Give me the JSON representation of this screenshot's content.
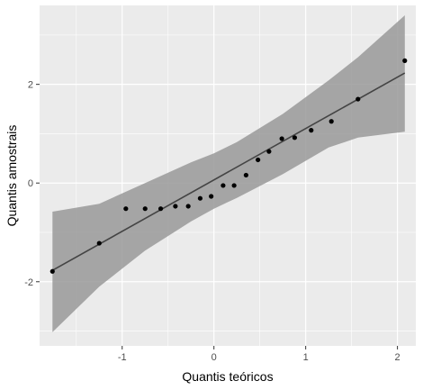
{
  "chart_data": {
    "type": "scatter",
    "xlabel": "Quantis teóricos",
    "ylabel": "Quantis amostrais",
    "xlim": [
      -1.9,
      2.2
    ],
    "ylim": [
      -3.3,
      3.6
    ],
    "x_ticks": [
      -1,
      0,
      1,
      2
    ],
    "y_ticks": [
      -2,
      0,
      2
    ],
    "x_tick_labels": [
      "-1",
      "0",
      "1",
      "2"
    ],
    "y_tick_labels": [
      "-2",
      "0",
      "2"
    ],
    "grid": true,
    "points": [
      {
        "x": -1.76,
        "y": -1.79
      },
      {
        "x": -1.25,
        "y": -1.22
      },
      {
        "x": -0.96,
        "y": -0.52
      },
      {
        "x": -0.75,
        "y": -0.52
      },
      {
        "x": -0.58,
        "y": -0.52
      },
      {
        "x": -0.42,
        "y": -0.47
      },
      {
        "x": -0.28,
        "y": -0.47
      },
      {
        "x": -0.15,
        "y": -0.31
      },
      {
        "x": -0.03,
        "y": -0.27
      },
      {
        "x": 0.1,
        "y": -0.05
      },
      {
        "x": 0.22,
        "y": -0.05
      },
      {
        "x": 0.35,
        "y": 0.16
      },
      {
        "x": 0.48,
        "y": 0.47
      },
      {
        "x": 0.6,
        "y": 0.64
      },
      {
        "x": 0.74,
        "y": 0.9
      },
      {
        "x": 0.88,
        "y": 0.92
      },
      {
        "x": 1.06,
        "y": 1.07
      },
      {
        "x": 1.28,
        "y": 1.25
      },
      {
        "x": 1.57,
        "y": 1.7
      },
      {
        "x": 2.08,
        "y": 2.48
      }
    ],
    "reference_line": {
      "x": [
        -1.76,
        2.08
      ],
      "y": [
        -1.77,
        2.23
      ]
    },
    "confidence_band": {
      "x": [
        -1.76,
        -1.25,
        -0.75,
        -0.25,
        0.0,
        0.25,
        0.75,
        1.25,
        1.57,
        2.08
      ],
      "upper": [
        -0.58,
        -0.42,
        0.0,
        0.42,
        0.6,
        0.83,
        1.4,
        2.08,
        2.55,
        3.4
      ],
      "lower": [
        -3.02,
        -2.1,
        -1.37,
        -0.78,
        -0.52,
        -0.3,
        0.18,
        0.72,
        0.92,
        1.04
      ]
    },
    "colors": {
      "panel": "#ebebeb",
      "grid_major": "#ffffff",
      "point": "#000000",
      "line": "#444444",
      "band": "#999999"
    }
  }
}
